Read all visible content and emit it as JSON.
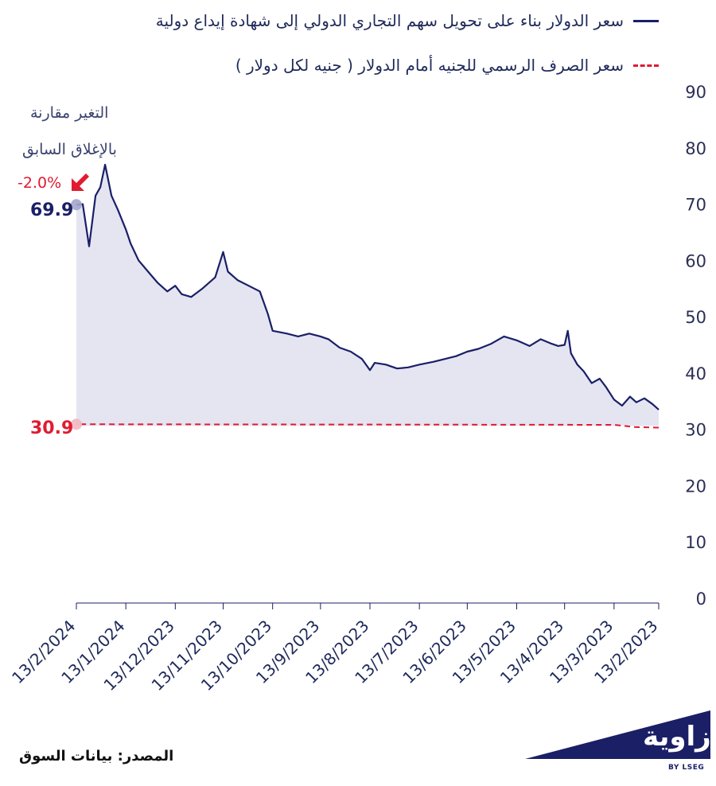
{
  "legend": {
    "series_a": "سعر الدولار بناء على تحويل سهم التجاري الدولي إلى شهادة إيداع دولية",
    "series_b": "سعر الصرف الرسمي للجنيه أمام الدولار ( جنيه لكل دولار )"
  },
  "annotation": {
    "line1": "التغير مقارنة",
    "line2": "بالإغلاق السابق",
    "change": "-2.0%"
  },
  "callouts": {
    "series_a_last": "69.9",
    "series_b_last": "30.9"
  },
  "source": "المصدر: بيانات السوق",
  "logo": {
    "name": "زاوية",
    "sub": "BY LSEG"
  },
  "colors": {
    "series_a": "#1a1f66",
    "series_b": "#e11b30",
    "area_fill": "#e4e5f1",
    "change_down": "#e11b30"
  },
  "chart_data": {
    "type": "line",
    "x_direction": "right-to-left",
    "ylim": [
      0,
      90
    ],
    "yticks": [
      0,
      10,
      20,
      30,
      40,
      50,
      60,
      70,
      80,
      90
    ],
    "xtick_labels": [
      "13/2/2023",
      "13/3/2023",
      "13/4/2023",
      "13/5/2023",
      "13/6/2023",
      "13/7/2023",
      "13/8/2023",
      "13/9/2023",
      "13/10/2023",
      "13/11/2023",
      "13/12/2023",
      "13/1/2024",
      "13/2/2024"
    ],
    "series": [
      {
        "name": "سعر الدولار بناء على تحويل سهم التجاري الدولي إلى شهادة إيداع دولية",
        "style": "solid",
        "area": true,
        "x": [
          "2023-02-13",
          "2023-02-17",
          "2023-02-22",
          "2023-02-27",
          "2023-03-03",
          "2023-03-08",
          "2023-03-13",
          "2023-03-18",
          "2023-03-22",
          "2023-03-27",
          "2023-04-01",
          "2023-04-05",
          "2023-04-09",
          "2023-04-11",
          "2023-04-13",
          "2023-04-17",
          "2023-04-22",
          "2023-04-28",
          "2023-05-05",
          "2023-05-13",
          "2023-05-21",
          "2023-05-29",
          "2023-06-06",
          "2023-06-13",
          "2023-06-20",
          "2023-06-27",
          "2023-07-04",
          "2023-07-13",
          "2023-07-20",
          "2023-07-27",
          "2023-08-03",
          "2023-08-10",
          "2023-08-13",
          "2023-08-18",
          "2023-08-25",
          "2023-09-01",
          "2023-09-08",
          "2023-09-13",
          "2023-09-20",
          "2023-09-27",
          "2023-10-04",
          "2023-10-13",
          "2023-10-16",
          "2023-10-21",
          "2023-10-28",
          "2023-11-04",
          "2023-11-10",
          "2023-11-13",
          "2023-11-18",
          "2023-11-26",
          "2023-12-03",
          "2023-12-09",
          "2023-12-13",
          "2023-12-18",
          "2023-12-24",
          "2023-12-30",
          "2024-01-05",
          "2024-01-10",
          "2024-01-13",
          "2024-01-18",
          "2024-01-22",
          "2024-01-26",
          "2024-01-29",
          "2024-02-01",
          "2024-02-05",
          "2024-02-09",
          "2024-02-13"
        ],
        "values": [
          33.5,
          34.5,
          35.5,
          34.8,
          35.8,
          34.2,
          35.3,
          37.5,
          39.0,
          38.2,
          40.3,
          41.5,
          43.5,
          47.5,
          45.0,
          44.8,
          45.3,
          46.0,
          44.8,
          45.8,
          46.5,
          45.2,
          44.3,
          43.8,
          43.0,
          42.5,
          42.0,
          41.5,
          41.0,
          40.8,
          41.5,
          41.8,
          40.5,
          42.5,
          43.8,
          44.5,
          46.0,
          46.5,
          47.0,
          46.5,
          47.0,
          47.5,
          50.5,
          54.5,
          55.5,
          56.5,
          58.0,
          61.5,
          57.0,
          55.0,
          53.5,
          54.0,
          55.5,
          54.5,
          56.0,
          58.0,
          60.0,
          63.0,
          65.5,
          69.0,
          71.5,
          77.0,
          73.0,
          71.5,
          62.5,
          70.0,
          69.9
        ]
      },
      {
        "name": "سعر الصرف الرسمي للجنيه أمام الدولار ( جنيه لكل دولار )",
        "style": "dashed",
        "area": false,
        "x": [
          "2023-02-13",
          "2023-02-28",
          "2023-03-13",
          "2024-01-29",
          "2024-02-13"
        ],
        "values": [
          30.3,
          30.4,
          30.8,
          30.9,
          30.9
        ]
      }
    ]
  }
}
